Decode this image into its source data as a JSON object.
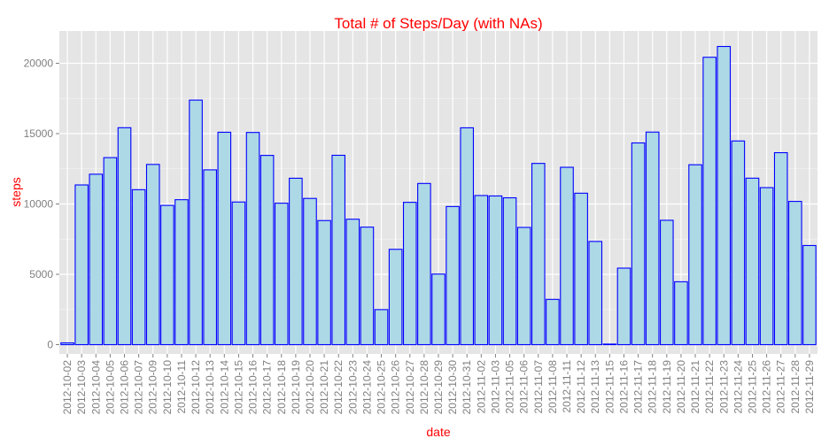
{
  "chart_data": {
    "type": "bar",
    "title": "Total # of Steps/Day (with NAs)",
    "xlabel": "date",
    "ylabel": "steps",
    "ylim": [
      0,
      22000
    ],
    "yticks": [
      0,
      5000,
      10000,
      15000,
      20000
    ],
    "grid": true,
    "colors": {
      "bar_fill": "#add8e6",
      "bar_stroke": "#0000ff",
      "panel": "#e5e5e5",
      "grid": "#ffffff",
      "title": "#ff0000",
      "axis_title": "#ff0000",
      "tick": "#7f7f7f"
    },
    "categories": [
      "2012-10-02",
      "2012-10-03",
      "2012-10-04",
      "2012-10-05",
      "2012-10-06",
      "2012-10-07",
      "2012-10-09",
      "2012-10-10",
      "2012-10-11",
      "2012-10-12",
      "2012-10-13",
      "2012-10-14",
      "2012-10-15",
      "2012-10-16",
      "2012-10-17",
      "2012-10-18",
      "2012-10-19",
      "2012-10-20",
      "2012-10-21",
      "2012-10-22",
      "2012-10-23",
      "2012-10-24",
      "2012-10-25",
      "2012-10-26",
      "2012-10-27",
      "2012-10-28",
      "2012-10-29",
      "2012-10-30",
      "2012-10-31",
      "2012-11-02",
      "2012-11-03",
      "2012-11-05",
      "2012-11-06",
      "2012-11-07",
      "2012-11-08",
      "2012-11-11",
      "2012-11-12",
      "2012-11-13",
      "2012-11-15",
      "2012-11-16",
      "2012-11-17",
      "2012-11-18",
      "2012-11-19",
      "2012-11-20",
      "2012-11-21",
      "2012-11-22",
      "2012-11-23",
      "2012-11-24",
      "2012-11-25",
      "2012-11-26",
      "2012-11-27",
      "2012-11-28",
      "2012-11-29"
    ],
    "values": [
      126,
      11352,
      12116,
      13294,
      15420,
      11015,
      12811,
      9900,
      10304,
      17382,
      12426,
      15098,
      10139,
      15084,
      13452,
      10056,
      11829,
      10395,
      8821,
      13460,
      8918,
      8355,
      2492,
      6778,
      10119,
      11458,
      5018,
      9819,
      15414,
      10600,
      10571,
      10439,
      8334,
      12883,
      3219,
      12608,
      10765,
      7336,
      41,
      5441,
      14339,
      15110,
      8841,
      4472,
      12787,
      20427,
      21194,
      14478,
      11834,
      11162,
      13646,
      10183,
      7047
    ]
  }
}
